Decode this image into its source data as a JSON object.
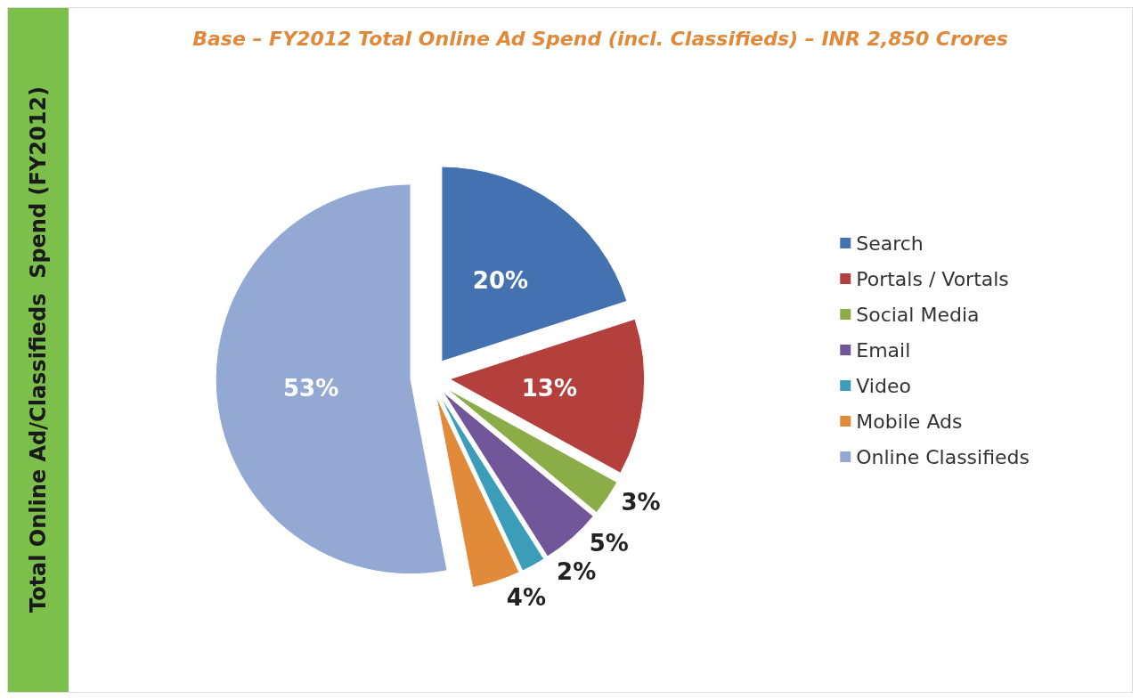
{
  "chart_data": {
    "type": "pie",
    "title": "Base – FY2012 Total Online Ad Spend (incl. Classifieds) – INR 2,850 Crores",
    "ylabel": "Total Online Ad/Classifieds  Spend (FY2012)",
    "categories": [
      "Search",
      "Portals / Vortals",
      "Social Media",
      "Email",
      "Video",
      "Mobile Ads",
      "Online Classifieds"
    ],
    "values": [
      20,
      13,
      3,
      5,
      2,
      4,
      53
    ],
    "colors": [
      "#4472b0",
      "#b4403e",
      "#8aad48",
      "#71579a",
      "#3b9db7",
      "#e08a3a",
      "#93a9d3"
    ],
    "value_labels": [
      "20%",
      "13%",
      "3%",
      "5%",
      "2%",
      "4%",
      "53%"
    ],
    "legend": "right"
  }
}
